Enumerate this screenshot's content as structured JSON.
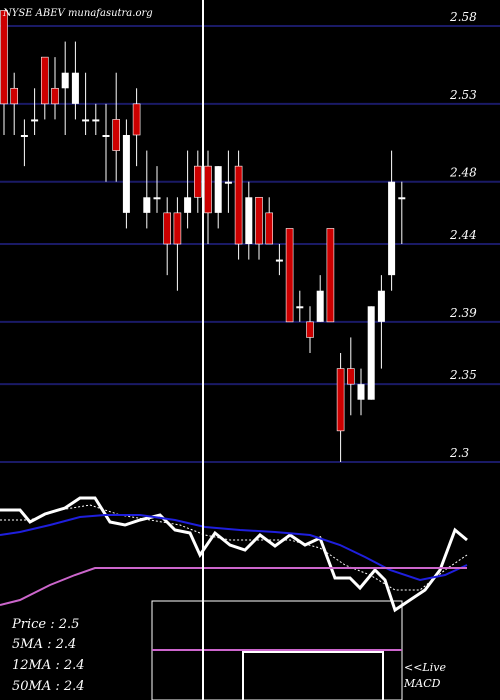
{
  "header": {
    "text": "NYSE ABEV munafasutra.org"
  },
  "stats": [
    "Price   : 2.5",
    "5MA : 2.4",
    "12MA : 2.4",
    "50MA : 2.4"
  ],
  "macd_label": {
    "line1": "<<Live",
    "line2": "MACD"
  },
  "colors": {
    "background": "#000000",
    "grid": "#1a1a66",
    "bull": "#ffffff",
    "bear": "#cc0000",
    "ma_blue": "#1f1fdd",
    "ma_pink": "#cc66cc",
    "cursor": "#ffffff"
  },
  "chart_data": [
    {
      "type": "candlestick",
      "title": "NYSE ABEV munafasutra.org",
      "yticks": [
        2.58,
        2.53,
        2.48,
        2.44,
        2.39,
        2.35,
        2.3
      ],
      "ylim": [
        2.29,
        2.6
      ],
      "grid": true,
      "candles": [
        {
          "o": 2.59,
          "c": 2.53,
          "h": 2.59,
          "l": 2.51,
          "bull": false
        },
        {
          "o": 2.54,
          "c": 2.53,
          "h": 2.55,
          "l": 2.51,
          "bull": false
        },
        {
          "o": 2.51,
          "c": 2.51,
          "h": 2.52,
          "l": 2.49,
          "bull": true
        },
        {
          "o": 2.52,
          "c": 2.52,
          "h": 2.54,
          "l": 2.51,
          "bull": true
        },
        {
          "o": 2.56,
          "c": 2.53,
          "h": 2.56,
          "l": 2.52,
          "bull": false
        },
        {
          "o": 2.54,
          "c": 2.53,
          "h": 2.56,
          "l": 2.52,
          "bull": false
        },
        {
          "o": 2.54,
          "c": 2.55,
          "h": 2.57,
          "l": 2.51,
          "bull": true
        },
        {
          "o": 2.53,
          "c": 2.55,
          "h": 2.57,
          "l": 2.52,
          "bull": true
        },
        {
          "o": 2.52,
          "c": 2.52,
          "h": 2.55,
          "l": 2.51,
          "bull": true
        },
        {
          "o": 2.52,
          "c": 2.52,
          "h": 2.53,
          "l": 2.51,
          "bull": true
        },
        {
          "o": 2.51,
          "c": 2.51,
          "h": 2.53,
          "l": 2.48,
          "bull": true
        },
        {
          "o": 2.52,
          "c": 2.5,
          "h": 2.55,
          "l": 2.48,
          "bull": false
        },
        {
          "o": 2.46,
          "c": 2.51,
          "h": 2.52,
          "l": 2.45,
          "bull": true
        },
        {
          "o": 2.53,
          "c": 2.51,
          "h": 2.54,
          "l": 2.49,
          "bull": false
        },
        {
          "o": 2.46,
          "c": 2.47,
          "h": 2.5,
          "l": 2.45,
          "bull": true
        },
        {
          "o": 2.47,
          "c": 2.47,
          "h": 2.49,
          "l": 2.46,
          "bull": true
        },
        {
          "o": 2.46,
          "c": 2.44,
          "h": 2.47,
          "l": 2.42,
          "bull": false
        },
        {
          "o": 2.46,
          "c": 2.44,
          "h": 2.47,
          "l": 2.41,
          "bull": false
        },
        {
          "o": 2.46,
          "c": 2.47,
          "h": 2.5,
          "l": 2.45,
          "bull": true
        },
        {
          "o": 2.49,
          "c": 2.47,
          "h": 2.5,
          "l": 2.46,
          "bull": false
        },
        {
          "o": 2.49,
          "c": 2.46,
          "h": 2.5,
          "l": 2.44,
          "bull": false
        },
        {
          "o": 2.46,
          "c": 2.49,
          "h": 2.49,
          "l": 2.45,
          "bull": true
        },
        {
          "o": 2.48,
          "c": 2.48,
          "h": 2.5,
          "l": 2.46,
          "bull": true
        },
        {
          "o": 2.49,
          "c": 2.44,
          "h": 2.5,
          "l": 2.43,
          "bull": false
        },
        {
          "o": 2.44,
          "c": 2.47,
          "h": 2.48,
          "l": 2.43,
          "bull": true
        },
        {
          "o": 2.47,
          "c": 2.44,
          "h": 2.47,
          "l": 2.43,
          "bull": false
        },
        {
          "o": 2.46,
          "c": 2.44,
          "h": 2.47,
          "l": 2.44,
          "bull": false
        },
        {
          "o": 2.43,
          "c": 2.43,
          "h": 2.44,
          "l": 2.42,
          "bull": true
        },
        {
          "o": 2.45,
          "c": 2.39,
          "h": 2.45,
          "l": 2.39,
          "bull": false
        },
        {
          "o": 2.4,
          "c": 2.4,
          "h": 2.41,
          "l": 2.39,
          "bull": true
        },
        {
          "o": 2.39,
          "c": 2.38,
          "h": 2.4,
          "l": 2.37,
          "bull": false
        },
        {
          "o": 2.39,
          "c": 2.41,
          "h": 2.42,
          "l": 2.39,
          "bull": true
        },
        {
          "o": 2.45,
          "c": 2.39,
          "h": 2.45,
          "l": 2.39,
          "bull": false
        },
        {
          "o": 2.36,
          "c": 2.32,
          "h": 2.37,
          "l": 2.3,
          "bull": false
        },
        {
          "o": 2.36,
          "c": 2.35,
          "h": 2.38,
          "l": 2.33,
          "bull": false
        },
        {
          "o": 2.34,
          "c": 2.35,
          "h": 2.36,
          "l": 2.33,
          "bull": true
        },
        {
          "o": 2.34,
          "c": 2.4,
          "h": 2.4,
          "l": 2.34,
          "bull": true
        },
        {
          "o": 2.39,
          "c": 2.41,
          "h": 2.42,
          "l": 2.36,
          "bull": true
        },
        {
          "o": 2.42,
          "c": 2.48,
          "h": 2.5,
          "l": 2.41,
          "bull": true
        },
        {
          "o": 2.47,
          "c": 2.47,
          "h": 2.48,
          "l": 2.44,
          "bull": true
        }
      ]
    }
  ]
}
